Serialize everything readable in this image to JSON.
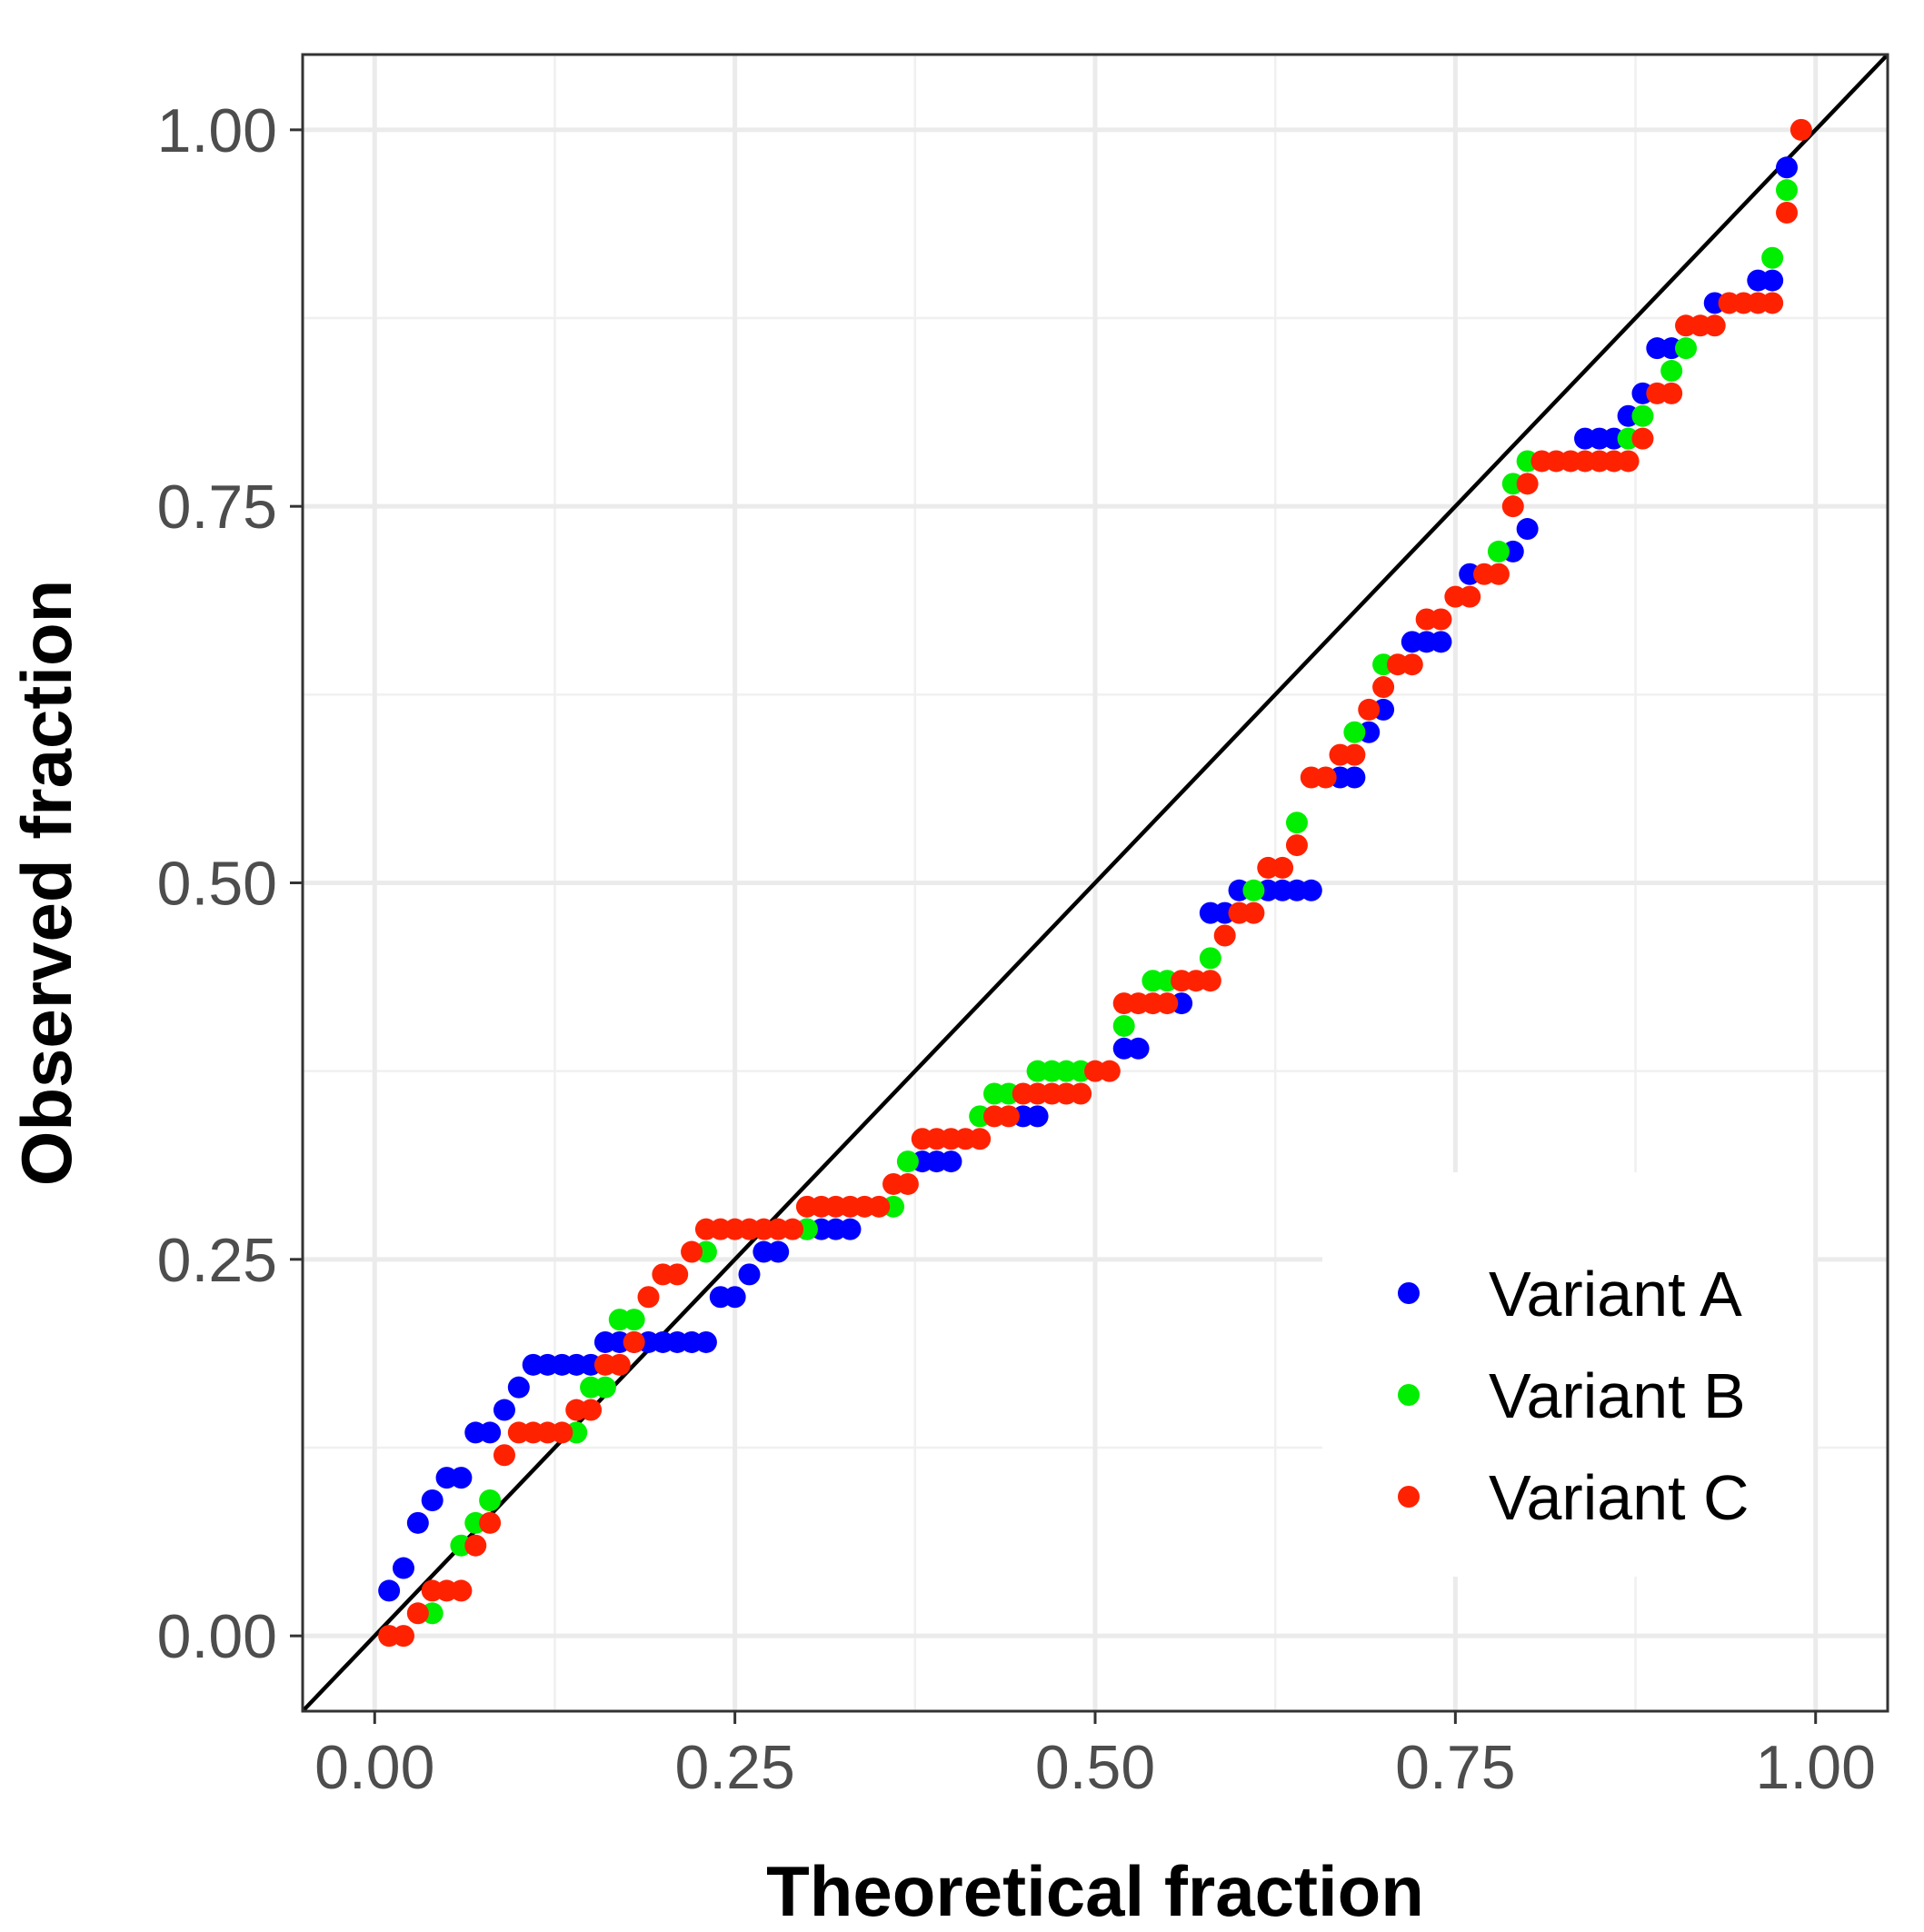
{
  "chart_data": {
    "type": "scatter",
    "title": "",
    "xlabel": "Theoretical fraction",
    "ylabel": "Observed fraction",
    "xlim": [
      -0.05,
      1.05
    ],
    "ylim": [
      -0.05,
      1.05
    ],
    "x_ticks": [
      0,
      0.25,
      0.5,
      0.75,
      1.0
    ],
    "x_tick_labels": [
      "0.00",
      "0.25",
      "0.50",
      "0.75",
      "1.00"
    ],
    "y_ticks": [
      0,
      0.25,
      0.5,
      0.75,
      1.0
    ],
    "y_tick_labels": [
      "0.00",
      "0.25",
      "0.50",
      "0.75",
      "1.00"
    ],
    "grid": true,
    "reference_line": {
      "type": "identity",
      "from": [
        -0.05,
        -0.05
      ],
      "to": [
        1.05,
        1.05
      ],
      "color": "#000000"
    },
    "legend_position": "bottom-right",
    "series": [
      {
        "name": "Variant A",
        "color": "#0000ff",
        "points": [
          [
            0.01,
            0.03
          ],
          [
            0.02,
            0.045
          ],
          [
            0.03,
            0.075
          ],
          [
            0.04,
            0.09
          ],
          [
            0.05,
            0.105
          ],
          [
            0.06,
            0.105
          ],
          [
            0.07,
            0.135
          ],
          [
            0.08,
            0.135
          ],
          [
            0.09,
            0.15
          ],
          [
            0.1,
            0.165
          ],
          [
            0.11,
            0.18
          ],
          [
            0.12,
            0.18
          ],
          [
            0.13,
            0.18
          ],
          [
            0.14,
            0.18
          ],
          [
            0.15,
            0.18
          ],
          [
            0.16,
            0.195
          ],
          [
            0.17,
            0.195
          ],
          [
            0.18,
            0.195
          ],
          [
            0.19,
            0.195
          ],
          [
            0.2,
            0.195
          ],
          [
            0.21,
            0.195
          ],
          [
            0.22,
            0.195
          ],
          [
            0.23,
            0.195
          ],
          [
            0.24,
            0.225
          ],
          [
            0.25,
            0.225
          ],
          [
            0.26,
            0.24
          ],
          [
            0.27,
            0.255
          ],
          [
            0.28,
            0.255
          ],
          [
            0.3,
            0.27
          ],
          [
            0.31,
            0.27
          ],
          [
            0.32,
            0.27
          ],
          [
            0.33,
            0.27
          ],
          [
            0.38,
            0.315
          ],
          [
            0.39,
            0.315
          ],
          [
            0.4,
            0.315
          ],
          [
            0.45,
            0.345
          ],
          [
            0.46,
            0.345
          ],
          [
            0.52,
            0.39
          ],
          [
            0.53,
            0.39
          ],
          [
            0.56,
            0.42
          ],
          [
            0.58,
            0.48
          ],
          [
            0.59,
            0.48
          ],
          [
            0.6,
            0.495
          ],
          [
            0.62,
            0.495
          ],
          [
            0.63,
            0.495
          ],
          [
            0.64,
            0.495
          ],
          [
            0.65,
            0.495
          ],
          [
            0.67,
            0.57
          ],
          [
            0.68,
            0.57
          ],
          [
            0.69,
            0.6
          ],
          [
            0.7,
            0.615
          ],
          [
            0.72,
            0.66
          ],
          [
            0.73,
            0.66
          ],
          [
            0.74,
            0.66
          ],
          [
            0.76,
            0.705
          ],
          [
            0.79,
            0.72
          ],
          [
            0.8,
            0.735
          ],
          [
            0.84,
            0.795
          ],
          [
            0.85,
            0.795
          ],
          [
            0.86,
            0.795
          ],
          [
            0.87,
            0.81
          ],
          [
            0.88,
            0.825
          ],
          [
            0.89,
            0.855
          ],
          [
            0.9,
            0.855
          ],
          [
            0.93,
            0.885
          ],
          [
            0.96,
            0.9
          ],
          [
            0.97,
            0.9
          ],
          [
            0.98,
            0.975
          ]
        ]
      },
      {
        "name": "Variant B",
        "color": "#00ee00",
        "points": [
          [
            0.04,
            0.015
          ],
          [
            0.06,
            0.06
          ],
          [
            0.07,
            0.075
          ],
          [
            0.08,
            0.09
          ],
          [
            0.14,
            0.135
          ],
          [
            0.15,
            0.165
          ],
          [
            0.16,
            0.165
          ],
          [
            0.17,
            0.21
          ],
          [
            0.18,
            0.21
          ],
          [
            0.23,
            0.255
          ],
          [
            0.3,
            0.27
          ],
          [
            0.36,
            0.285
          ],
          [
            0.37,
            0.315
          ],
          [
            0.42,
            0.345
          ],
          [
            0.43,
            0.36
          ],
          [
            0.44,
            0.36
          ],
          [
            0.46,
            0.375
          ],
          [
            0.47,
            0.375
          ],
          [
            0.48,
            0.375
          ],
          [
            0.49,
            0.375
          ],
          [
            0.52,
            0.405
          ],
          [
            0.54,
            0.435
          ],
          [
            0.55,
            0.435
          ],
          [
            0.58,
            0.45
          ],
          [
            0.61,
            0.495
          ],
          [
            0.64,
            0.54
          ],
          [
            0.68,
            0.6
          ],
          [
            0.7,
            0.645
          ],
          [
            0.78,
            0.72
          ],
          [
            0.79,
            0.765
          ],
          [
            0.8,
            0.78
          ],
          [
            0.87,
            0.795
          ],
          [
            0.88,
            0.81
          ],
          [
            0.9,
            0.84
          ],
          [
            0.91,
            0.855
          ],
          [
            0.97,
            0.915
          ],
          [
            0.98,
            0.96
          ]
        ]
      },
      {
        "name": "Variant C",
        "color": "#ff2200",
        "points": [
          [
            0.01,
            0.0
          ],
          [
            0.02,
            0.0
          ],
          [
            0.03,
            0.015
          ],
          [
            0.04,
            0.03
          ],
          [
            0.05,
            0.03
          ],
          [
            0.06,
            0.03
          ],
          [
            0.07,
            0.06
          ],
          [
            0.08,
            0.075
          ],
          [
            0.09,
            0.12
          ],
          [
            0.1,
            0.135
          ],
          [
            0.11,
            0.135
          ],
          [
            0.12,
            0.135
          ],
          [
            0.13,
            0.135
          ],
          [
            0.14,
            0.15
          ],
          [
            0.15,
            0.15
          ],
          [
            0.16,
            0.18
          ],
          [
            0.17,
            0.18
          ],
          [
            0.18,
            0.195
          ],
          [
            0.19,
            0.225
          ],
          [
            0.2,
            0.24
          ],
          [
            0.21,
            0.24
          ],
          [
            0.22,
            0.255
          ],
          [
            0.23,
            0.27
          ],
          [
            0.24,
            0.27
          ],
          [
            0.25,
            0.27
          ],
          [
            0.26,
            0.27
          ],
          [
            0.27,
            0.27
          ],
          [
            0.28,
            0.27
          ],
          [
            0.29,
            0.27
          ],
          [
            0.3,
            0.285
          ],
          [
            0.31,
            0.285
          ],
          [
            0.32,
            0.285
          ],
          [
            0.33,
            0.285
          ],
          [
            0.34,
            0.285
          ],
          [
            0.35,
            0.285
          ],
          [
            0.36,
            0.3
          ],
          [
            0.37,
            0.3
          ],
          [
            0.38,
            0.33
          ],
          [
            0.39,
            0.33
          ],
          [
            0.4,
            0.33
          ],
          [
            0.41,
            0.33
          ],
          [
            0.42,
            0.33
          ],
          [
            0.43,
            0.345
          ],
          [
            0.44,
            0.345
          ],
          [
            0.45,
            0.36
          ],
          [
            0.46,
            0.36
          ],
          [
            0.47,
            0.36
          ],
          [
            0.48,
            0.36
          ],
          [
            0.49,
            0.36
          ],
          [
            0.5,
            0.375
          ],
          [
            0.51,
            0.375
          ],
          [
            0.52,
            0.42
          ],
          [
            0.53,
            0.42
          ],
          [
            0.54,
            0.42
          ],
          [
            0.55,
            0.42
          ],
          [
            0.56,
            0.435
          ],
          [
            0.57,
            0.435
          ],
          [
            0.58,
            0.435
          ],
          [
            0.59,
            0.465
          ],
          [
            0.6,
            0.48
          ],
          [
            0.61,
            0.48
          ],
          [
            0.62,
            0.51
          ],
          [
            0.63,
            0.51
          ],
          [
            0.64,
            0.525
          ],
          [
            0.65,
            0.57
          ],
          [
            0.66,
            0.57
          ],
          [
            0.67,
            0.585
          ],
          [
            0.68,
            0.585
          ],
          [
            0.69,
            0.615
          ],
          [
            0.7,
            0.63
          ],
          [
            0.71,
            0.645
          ],
          [
            0.72,
            0.645
          ],
          [
            0.73,
            0.675
          ],
          [
            0.74,
            0.675
          ],
          [
            0.75,
            0.69
          ],
          [
            0.76,
            0.69
          ],
          [
            0.77,
            0.705
          ],
          [
            0.78,
            0.705
          ],
          [
            0.79,
            0.75
          ],
          [
            0.8,
            0.765
          ],
          [
            0.81,
            0.78
          ],
          [
            0.82,
            0.78
          ],
          [
            0.83,
            0.78
          ],
          [
            0.84,
            0.78
          ],
          [
            0.85,
            0.78
          ],
          [
            0.86,
            0.78
          ],
          [
            0.87,
            0.78
          ],
          [
            0.88,
            0.795
          ],
          [
            0.89,
            0.825
          ],
          [
            0.9,
            0.825
          ],
          [
            0.91,
            0.87
          ],
          [
            0.92,
            0.87
          ],
          [
            0.93,
            0.87
          ],
          [
            0.94,
            0.885
          ],
          [
            0.95,
            0.885
          ],
          [
            0.96,
            0.885
          ],
          [
            0.97,
            0.885
          ],
          [
            0.98,
            0.945
          ],
          [
            0.99,
            1.0
          ]
        ]
      }
    ]
  }
}
